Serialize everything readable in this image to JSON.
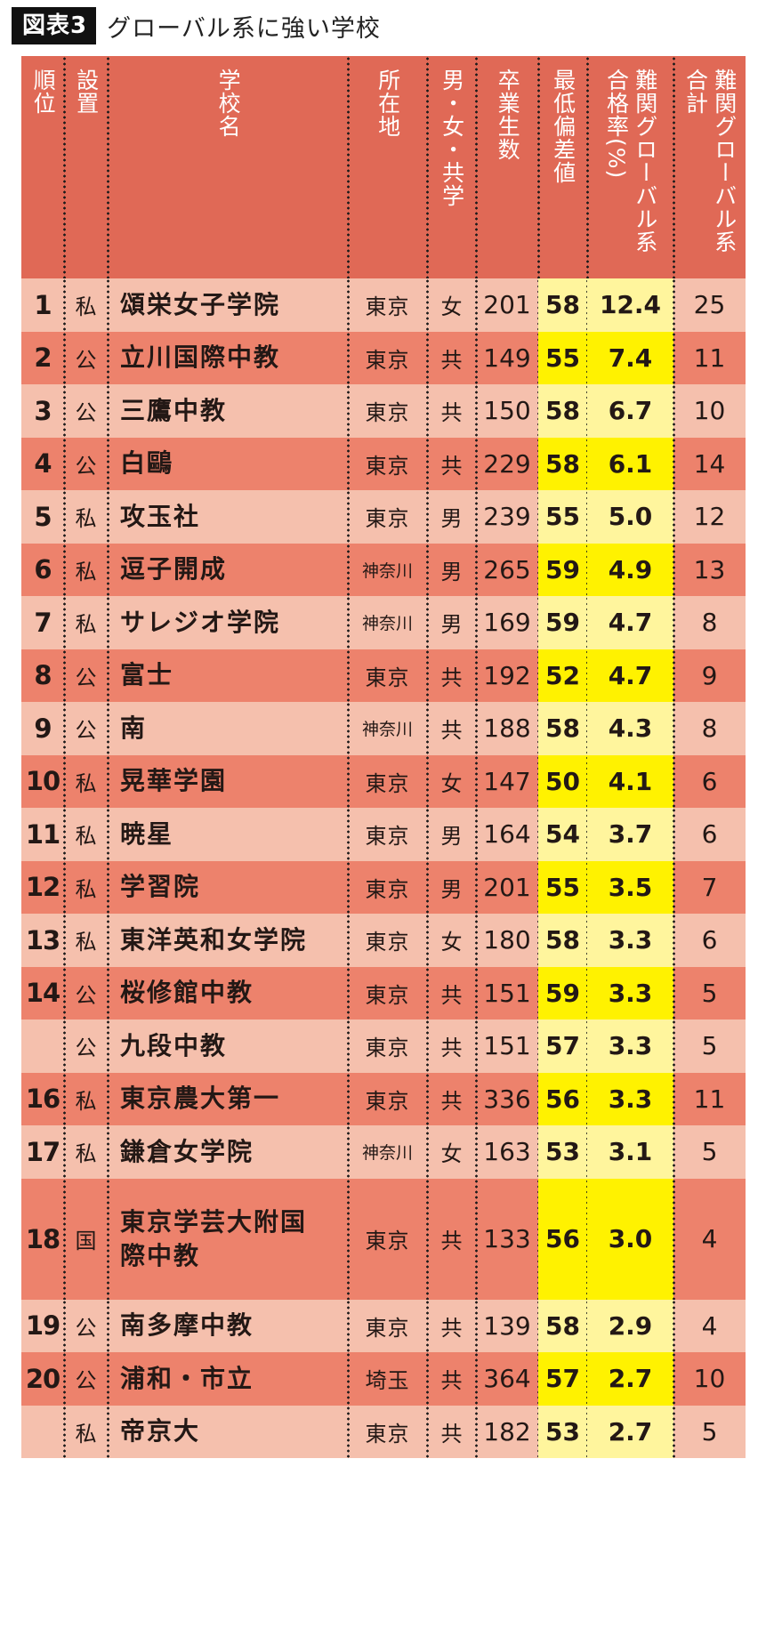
{
  "title": {
    "badge": "図表3",
    "text": "グローバル系に強い学校"
  },
  "headers": {
    "rank": "順位",
    "type": "設置",
    "name": "学校名",
    "location": "所在地",
    "gender": "男・女・共学",
    "graduates": "卒業生数",
    "min_deviation": "最低偏差値",
    "rate_line1": "難関グローバル系",
    "rate_line2": "合格率(%)",
    "total_line1": "難関グローバル系",
    "total_line2": "合計"
  },
  "colors": {
    "header_bg": "#e06956",
    "row_light": "#f5c0ad",
    "row_dark": "#ed826c",
    "highlight_light": "#fff59d",
    "highlight_dark": "#fff200"
  },
  "rows": [
    {
      "rank": "1",
      "type": "私",
      "name": "頌栄女子学院",
      "location": "東京",
      "gender": "女",
      "graduates": "201",
      "min_deviation": "58",
      "rate": "12.4",
      "total": "25"
    },
    {
      "rank": "2",
      "type": "公",
      "name": "立川国際中教",
      "location": "東京",
      "gender": "共",
      "graduates": "149",
      "min_deviation": "55",
      "rate": "7.4",
      "total": "11"
    },
    {
      "rank": "3",
      "type": "公",
      "name": "三鷹中教",
      "location": "東京",
      "gender": "共",
      "graduates": "150",
      "min_deviation": "58",
      "rate": "6.7",
      "total": "10"
    },
    {
      "rank": "4",
      "type": "公",
      "name": "白鷗",
      "location": "東京",
      "gender": "共",
      "graduates": "229",
      "min_deviation": "58",
      "rate": "6.1",
      "total": "14"
    },
    {
      "rank": "5",
      "type": "私",
      "name": "攻玉社",
      "location": "東京",
      "gender": "男",
      "graduates": "239",
      "min_deviation": "55",
      "rate": "5.0",
      "total": "12"
    },
    {
      "rank": "6",
      "type": "私",
      "name": "逗子開成",
      "location": "神奈川",
      "gender": "男",
      "graduates": "265",
      "min_deviation": "59",
      "rate": "4.9",
      "total": "13"
    },
    {
      "rank": "7",
      "type": "私",
      "name": "サレジオ学院",
      "location": "神奈川",
      "gender": "男",
      "graduates": "169",
      "min_deviation": "59",
      "rate": "4.7",
      "total": "8"
    },
    {
      "rank": "8",
      "type": "公",
      "name": "富士",
      "location": "東京",
      "gender": "共",
      "graduates": "192",
      "min_deviation": "52",
      "rate": "4.7",
      "total": "9"
    },
    {
      "rank": "9",
      "type": "公",
      "name": "南",
      "location": "神奈川",
      "gender": "共",
      "graduates": "188",
      "min_deviation": "58",
      "rate": "4.3",
      "total": "8"
    },
    {
      "rank": "10",
      "type": "私",
      "name": "晃華学園",
      "location": "東京",
      "gender": "女",
      "graduates": "147",
      "min_deviation": "50",
      "rate": "4.1",
      "total": "6"
    },
    {
      "rank": "11",
      "type": "私",
      "name": "暁星",
      "location": "東京",
      "gender": "男",
      "graduates": "164",
      "min_deviation": "54",
      "rate": "3.7",
      "total": "6"
    },
    {
      "rank": "12",
      "type": "私",
      "name": "学習院",
      "location": "東京",
      "gender": "男",
      "graduates": "201",
      "min_deviation": "55",
      "rate": "3.5",
      "total": "7"
    },
    {
      "rank": "13",
      "type": "私",
      "name": "東洋英和女学院",
      "location": "東京",
      "gender": "女",
      "graduates": "180",
      "min_deviation": "58",
      "rate": "3.3",
      "total": "6"
    },
    {
      "rank": "14",
      "type": "公",
      "name": "桜修館中教",
      "location": "東京",
      "gender": "共",
      "graduates": "151",
      "min_deviation": "59",
      "rate": "3.3",
      "total": "5"
    },
    {
      "rank": "",
      "type": "公",
      "name": "九段中教",
      "location": "東京",
      "gender": "共",
      "graduates": "151",
      "min_deviation": "57",
      "rate": "3.3",
      "total": "5"
    },
    {
      "rank": "16",
      "type": "私",
      "name": "東京農大第一",
      "location": "東京",
      "gender": "共",
      "graduates": "336",
      "min_deviation": "56",
      "rate": "3.3",
      "total": "11"
    },
    {
      "rank": "17",
      "type": "私",
      "name": "鎌倉女学院",
      "location": "神奈川",
      "gender": "女",
      "graduates": "163",
      "min_deviation": "53",
      "rate": "3.1",
      "total": "5"
    },
    {
      "rank": "18",
      "type": "国",
      "name_line1": "東京学芸大附国",
      "name_line2": "際中教",
      "location": "東京",
      "gender": "共",
      "graduates": "133",
      "min_deviation": "56",
      "rate": "3.0",
      "total": "4"
    },
    {
      "rank": "19",
      "type": "公",
      "name": "南多摩中教",
      "location": "東京",
      "gender": "共",
      "graduates": "139",
      "min_deviation": "58",
      "rate": "2.9",
      "total": "4"
    },
    {
      "rank": "20",
      "type": "公",
      "name": "浦和・市立",
      "location": "埼玉",
      "gender": "共",
      "graduates": "364",
      "min_deviation": "57",
      "rate": "2.7",
      "total": "10"
    },
    {
      "rank": "",
      "type": "私",
      "name": "帝京大",
      "location": "東京",
      "gender": "共",
      "graduates": "182",
      "min_deviation": "53",
      "rate": "2.7",
      "total": "5"
    }
  ]
}
